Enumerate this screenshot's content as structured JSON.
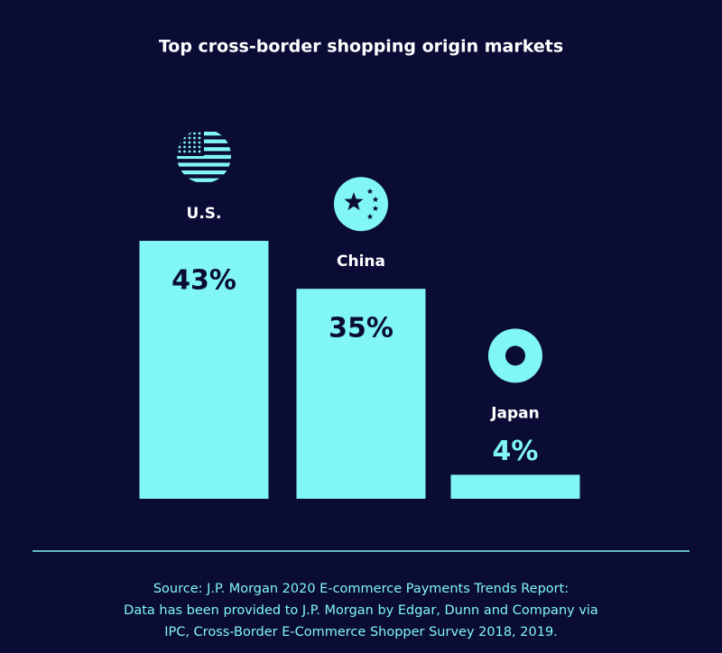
{
  "chart_data": {
    "type": "bar",
    "title": "Top cross-border shopping origin markets",
    "categories": [
      "U.S.",
      "China",
      "Japan"
    ],
    "values": [
      43,
      35,
      4
    ],
    "value_labels": [
      "43%",
      "35%",
      "4%"
    ],
    "color": "#80f6f6",
    "source": [
      "Source: J.P. Morgan 2020 E-commerce Payments Trends Report:",
      "Data has been provided to J.P. Morgan by Edgar, Dunn and Company via",
      "IPC, Cross-Border E-Commerce Shopper Survey 2018, 2019."
    ]
  }
}
